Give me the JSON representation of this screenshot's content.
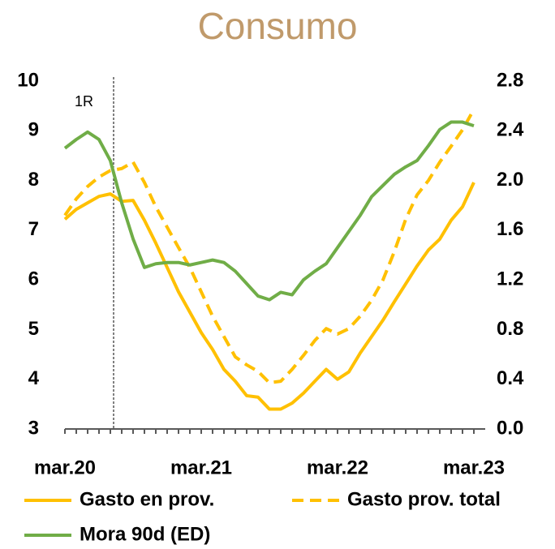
{
  "chart_data": {
    "type": "line",
    "title": "Consumo",
    "categories": [
      "mar.20",
      null,
      null,
      null,
      null,
      null,
      null,
      null,
      null,
      null,
      null,
      null,
      "mar.21",
      null,
      null,
      null,
      null,
      null,
      null,
      null,
      null,
      null,
      null,
      null,
      "mar.22",
      null,
      null,
      null,
      null,
      null,
      null,
      null,
      null,
      null,
      null,
      null,
      "mar.23"
    ],
    "series": [
      {
        "name": "Gasto en prov.",
        "color": "#FFC000",
        "line_style": "solid",
        "values": [
          7.22,
          7.42,
          7.55,
          7.68,
          7.73,
          7.58,
          7.6,
          7.2,
          6.74,
          6.25,
          5.76,
          5.35,
          4.94,
          4.6,
          4.2,
          3.96,
          3.67,
          3.64,
          3.4,
          3.4,
          3.52,
          3.72,
          3.96,
          4.2,
          4.0,
          4.15,
          4.53,
          4.86,
          5.19,
          5.56,
          5.92,
          6.28,
          6.6,
          6.82,
          7.2,
          7.47,
          7.96
        ]
      },
      {
        "name": "Gasto prov. total",
        "color": "#FFC000",
        "line_style": "dashed",
        "values": [
          7.3,
          7.63,
          7.88,
          8.07,
          8.2,
          8.24,
          8.37,
          7.96,
          7.47,
          7.06,
          6.65,
          6.25,
          5.76,
          5.27,
          4.86,
          4.45,
          4.29,
          4.16,
          3.93,
          3.96,
          4.2,
          4.48,
          4.78,
          5.02,
          4.91,
          5.02,
          5.27,
          5.59,
          6.0,
          6.57,
          7.22,
          7.71,
          8.0,
          8.37,
          8.69,
          9.02,
          9.43
        ]
      },
      {
        "name": "Mora 90d (ED)",
        "color": "#70AD47",
        "line_style": "solid",
        "axis": "y2",
        "values": [
          2.26,
          2.33,
          2.39,
          2.33,
          2.16,
          1.82,
          1.53,
          1.3,
          1.33,
          1.34,
          1.34,
          1.32,
          1.34,
          1.36,
          1.34,
          1.27,
          1.17,
          1.07,
          1.04,
          1.1,
          1.08,
          1.2,
          1.27,
          1.33,
          1.46,
          1.59,
          1.72,
          1.87,
          1.96,
          2.05,
          2.11,
          2.16,
          2.28,
          2.41,
          2.47,
          2.47,
          2.44
        ]
      }
    ],
    "annotations": [
      "1R"
    ],
    "ylim": [
      3,
      10
    ],
    "yticks": [
      3,
      4,
      5,
      6,
      7,
      8,
      9,
      10
    ],
    "y2lim": [
      0,
      2.8
    ],
    "y2ticks": [
      {
        "value": 0,
        "label": "0.0"
      },
      {
        "value": 0.4,
        "label": "0.4"
      },
      {
        "value": 0.8,
        "label": "0.8"
      },
      {
        "value": 1.2,
        "label": "1.2"
      },
      {
        "value": 1.6,
        "label": "1.6"
      },
      {
        "value": 2.0,
        "label": "2.0"
      },
      {
        "value": 2.4,
        "label": "2.4"
      },
      {
        "value": 2.8,
        "label": "2.8"
      }
    ],
    "grid": false
  }
}
